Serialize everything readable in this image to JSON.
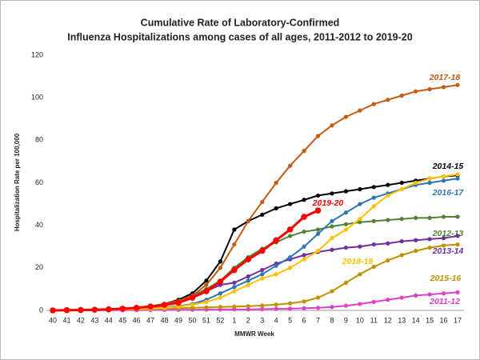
{
  "chart_data": {
    "type": "line",
    "title": [
      "Cumulative Rate of Laboratory-Confirmed",
      "Influenza Hospitalizations among cases of all ages, 2011-2012 to 2019-20"
    ],
    "x_label": "MMWR Week",
    "y_label": "Hospitalization  Rate per 100,000",
    "categories": [
      "40",
      "41",
      "42",
      "43",
      "44",
      "45",
      "46",
      "47",
      "48",
      "49",
      "50",
      "51",
      "52",
      "1",
      "2",
      "3",
      "4",
      "5",
      "6",
      "7",
      "8",
      "9",
      "10",
      "11",
      "12",
      "13",
      "14",
      "15",
      "16",
      "17"
    ],
    "ylim": [
      0,
      120
    ],
    "yticks": [
      0,
      20,
      40,
      60,
      80,
      100,
      120
    ],
    "grid": false,
    "series": [
      {
        "name": "2011-12",
        "color": "#e040c8",
        "values": [
          0,
          0,
          0,
          0,
          0.1,
          0.1,
          0.1,
          0.2,
          0.2,
          0.3,
          0.3,
          0.4,
          0.4,
          0.5,
          0.5,
          0.6,
          0.7,
          0.8,
          1,
          1.2,
          1.6,
          2.2,
          3,
          4,
          5,
          6,
          7,
          7.5,
          8,
          8.5
        ]
      },
      {
        "name": "2012-13",
        "color": "#548235",
        "values": [
          0,
          0.1,
          0.2,
          0.4,
          0.6,
          0.9,
          1.3,
          2,
          3,
          4.5,
          7,
          10,
          14,
          20,
          25,
          29,
          32,
          35,
          37,
          38,
          39.5,
          40.5,
          41.5,
          42,
          42.5,
          43,
          43.5,
          43.5,
          44,
          44
        ]
      },
      {
        "name": "2013-14",
        "color": "#7030a0",
        "values": [
          0,
          0.1,
          0.2,
          0.3,
          0.5,
          0.8,
          1.2,
          2,
          3,
          4.5,
          6.5,
          9,
          12,
          13,
          16,
          19,
          22,
          24,
          26,
          27.5,
          28.5,
          29.5,
          30,
          31,
          31.5,
          32.5,
          33,
          33.5,
          34,
          35
        ]
      },
      {
        "name": "2014-15",
        "color": "#000000",
        "values": [
          0,
          0.1,
          0.2,
          0.3,
          0.5,
          0.8,
          1.2,
          2,
          3,
          5,
          8,
          14,
          23,
          38,
          42,
          45,
          48,
          50,
          52,
          54,
          55,
          56,
          57,
          58,
          59,
          60,
          61,
          62,
          63,
          63.5
        ]
      },
      {
        "name": "2015-16",
        "color": "#bf9000",
        "values": [
          0,
          0,
          0.1,
          0.2,
          0.3,
          0.4,
          0.5,
          0.6,
          0.8,
          1,
          1.2,
          1.4,
          1.6,
          1.8,
          2,
          2.3,
          2.7,
          3.3,
          4.2,
          6,
          9,
          13,
          17,
          20.5,
          23.5,
          26,
          28,
          29.5,
          30.5,
          31
        ]
      },
      {
        "name": "2016-17",
        "color": "#2e75b6",
        "values": [
          0,
          0,
          0.1,
          0.2,
          0.3,
          0.5,
          0.7,
          1,
          1.5,
          2,
          3,
          5,
          8,
          11,
          14,
          17,
          21,
          25,
          30,
          36,
          42,
          46,
          50,
          53,
          55,
          57,
          59,
          60,
          61,
          62
        ]
      },
      {
        "name": "2017-18",
        "color": "#c55a11",
        "values": [
          0,
          0.1,
          0.2,
          0.3,
          0.5,
          0.8,
          1.2,
          2,
          3,
          4.5,
          7,
          12,
          20,
          31,
          42,
          51,
          60,
          68,
          75,
          82,
          87,
          91,
          94,
          97,
          99,
          101,
          103,
          104,
          105,
          106
        ]
      },
      {
        "name": "2018-19",
        "color": "#ffc000",
        "values": [
          0,
          0,
          0.1,
          0.2,
          0.3,
          0.4,
          0.6,
          0.8,
          1.2,
          1.8,
          2.7,
          4,
          6,
          9,
          12,
          15,
          17,
          20,
          24,
          28,
          34,
          38,
          43,
          49,
          54,
          57,
          60,
          62,
          63,
          64
        ]
      },
      {
        "name": "2019-20",
        "color": "#ff0000",
        "values": [
          0,
          0.1,
          0.2,
          0.3,
          0.5,
          0.8,
          1.2,
          1.8,
          2.6,
          3.6,
          6,
          9,
          13.5,
          19,
          24,
          28,
          33,
          38,
          44,
          47,
          null,
          null,
          null,
          null,
          null,
          null,
          null,
          null,
          null,
          null
        ]
      }
    ]
  }
}
